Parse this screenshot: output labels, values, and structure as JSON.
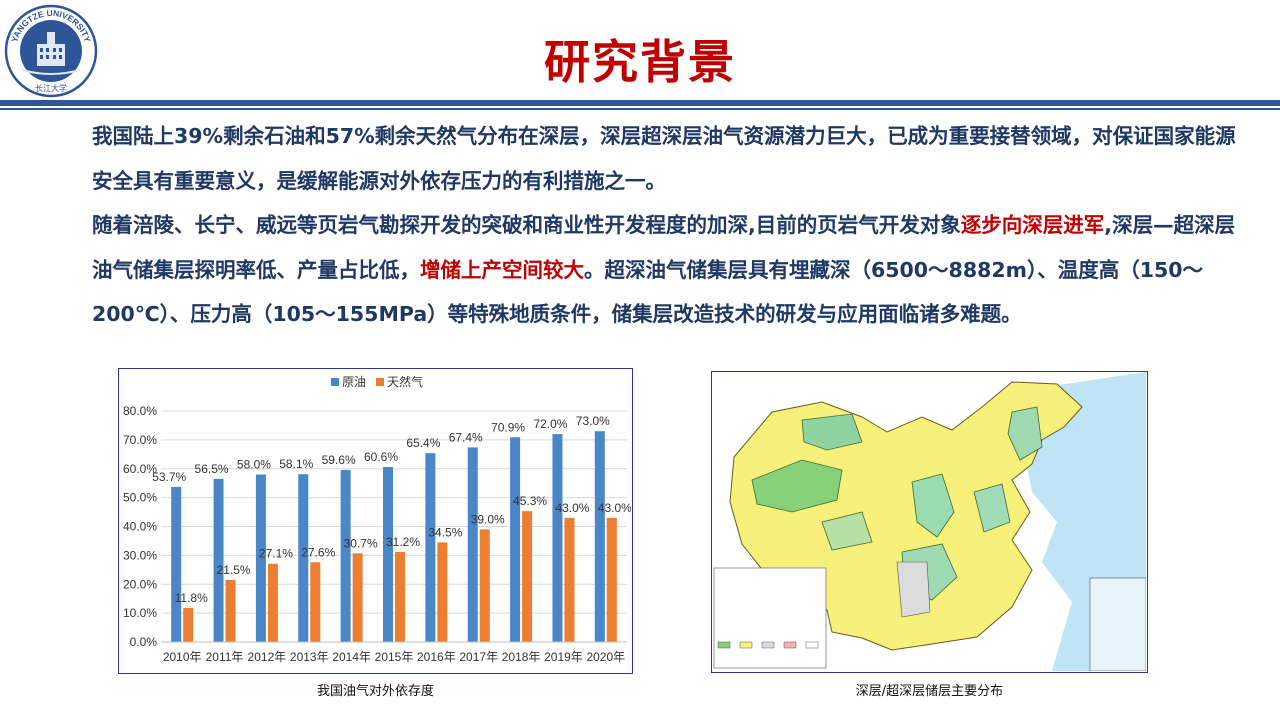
{
  "header": {
    "title": "研究背景",
    "logo_text": "YANGTZE UNIVERSITY",
    "logo_seal": "长江大学"
  },
  "paragraph1": "我国陆上39%剩余石油和57%剩余天然气分布在深层，深层超深层油气资源潜力巨大，已成为重要接替领域，对保证国家能源安全具有重要意义，是缓解能源对外依存压力的有利措施之一。",
  "paragraph2": {
    "part1": "随着涪陵、长宁、威远等页岩气勘探开发的突破和商业性开发程度的加深,目前的页岩气开发对象",
    "red1": "逐步向深层进军",
    "part2": ",深层—超深层油气储集层探明率低、产量占比低，",
    "red2": "增储上产空间较大",
    "part3": "。超深油气储集层具有埋藏深（6500～8882m）、温度高（150～200℃）、压力高（105～155MPa）等特殊地质条件，储集层改造技术的研发与应用面临诸多难题。"
  },
  "chart_caption": "我国油气对外依存度",
  "map_caption": "深层/超深层储层主要分布",
  "colors": {
    "oil": "#4a86c8",
    "gas": "#ed7d31",
    "accent": "#c00000",
    "navy": "#1f3864",
    "band": "#2e5597"
  },
  "chart_data": {
    "type": "bar",
    "categories": [
      "2010年",
      "2011年",
      "2012年",
      "2013年",
      "2014年",
      "2015年",
      "2016年",
      "2017年",
      "2018年",
      "2019年",
      "2020年"
    ],
    "series": [
      {
        "name": "原油",
        "values": [
          53.7,
          56.5,
          58.0,
          58.1,
          59.6,
          60.6,
          65.4,
          67.4,
          70.9,
          72.0,
          73.0
        ],
        "labels": [
          "53.7%",
          "56.5%",
          "58.0%",
          "58.1%",
          "59.6%",
          "60.6%",
          "65.4%",
          "67.4%",
          "70.9%",
          "72.0%",
          "73.0%"
        ]
      },
      {
        "name": "天然气",
        "values": [
          11.8,
          21.5,
          27.1,
          27.6,
          30.7,
          31.2,
          34.5,
          39.0,
          45.3,
          43.0,
          43.0
        ],
        "labels": [
          "11.8%",
          "21.5%",
          "27.1%",
          "27.6%",
          "30.7%",
          "31.2%",
          "34.5%",
          "39.0%",
          "45.3%",
          "43.0%",
          "43.0%"
        ]
      }
    ],
    "yticks": [
      "0.0%",
      "10.0%",
      "20.0%",
      "30.0%",
      "40.0%",
      "50.0%",
      "60.0%",
      "70.0%",
      "80.0%"
    ],
    "ylim": [
      0,
      80
    ],
    "legend": "top",
    "grid": true
  }
}
